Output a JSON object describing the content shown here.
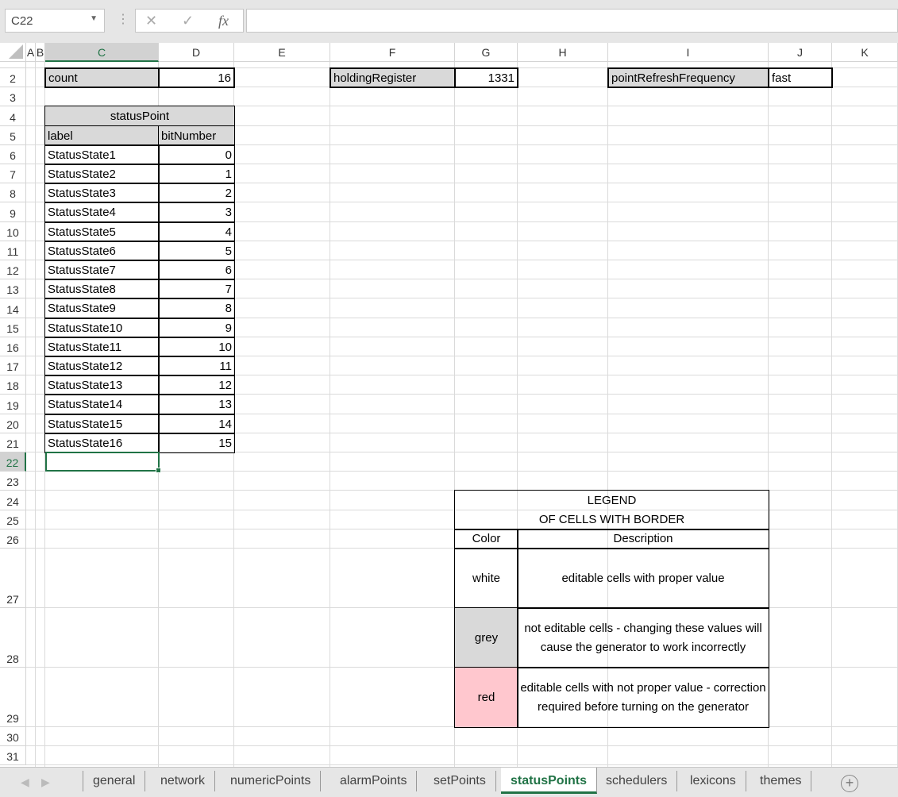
{
  "name_box": "C22",
  "formula_bar": {
    "cancel_icon": "✕",
    "enter_icon": "✓",
    "fx_icon": "fx",
    "value": ""
  },
  "columns": [
    "A",
    "B",
    "C",
    "D",
    "E",
    "F",
    "G",
    "H",
    "I",
    "J",
    "K"
  ],
  "rows": [
    "1",
    "2",
    "3",
    "4",
    "5",
    "6",
    "7",
    "8",
    "9",
    "10",
    "11",
    "12",
    "13",
    "14",
    "15",
    "16",
    "17",
    "18",
    "19",
    "20",
    "21",
    "22",
    "23",
    "24",
    "25",
    "26",
    "27",
    "28",
    "29",
    "30",
    "31"
  ],
  "selected": {
    "cell": "C22",
    "column": "C",
    "row": "22"
  },
  "cells": [
    {
      "ref": "C2",
      "value": "count",
      "style": "grey bb"
    },
    {
      "ref": "D2",
      "value": "16",
      "style": "r bb"
    },
    {
      "ref": "F2",
      "value": "holdingRegister",
      "style": "grey bb"
    },
    {
      "ref": "G2",
      "value": "1331",
      "style": "r bb"
    },
    {
      "ref": "I2",
      "value": "pointRefreshFrequency",
      "style": "grey bb"
    },
    {
      "ref": "J2",
      "value": "fast",
      "style": "bb"
    },
    {
      "ref": "C4:D4",
      "value": "statusPoint",
      "style": "grey b c"
    },
    {
      "ref": "C5",
      "value": "label",
      "style": "grey b"
    },
    {
      "ref": "D5",
      "value": "bitNumber",
      "style": "grey b"
    },
    {
      "ref": "C6",
      "value": "StatusState1",
      "style": "b"
    },
    {
      "ref": "D6",
      "value": "0",
      "style": "b r"
    },
    {
      "ref": "C7",
      "value": "StatusState2",
      "style": "b"
    },
    {
      "ref": "D7",
      "value": "1",
      "style": "b r"
    },
    {
      "ref": "C8",
      "value": "StatusState3",
      "style": "b"
    },
    {
      "ref": "D8",
      "value": "2",
      "style": "b r"
    },
    {
      "ref": "C9",
      "value": "StatusState4",
      "style": "b"
    },
    {
      "ref": "D9",
      "value": "3",
      "style": "b r"
    },
    {
      "ref": "C10",
      "value": "StatusState5",
      "style": "b"
    },
    {
      "ref": "D10",
      "value": "4",
      "style": "b r"
    },
    {
      "ref": "C11",
      "value": "StatusState6",
      "style": "b"
    },
    {
      "ref": "D11",
      "value": "5",
      "style": "b r"
    },
    {
      "ref": "C12",
      "value": "StatusState7",
      "style": "b"
    },
    {
      "ref": "D12",
      "value": "6",
      "style": "b r"
    },
    {
      "ref": "C13",
      "value": "StatusState8",
      "style": "b"
    },
    {
      "ref": "D13",
      "value": "7",
      "style": "b r"
    },
    {
      "ref": "C14",
      "value": "StatusState9",
      "style": "b"
    },
    {
      "ref": "D14",
      "value": "8",
      "style": "b r"
    },
    {
      "ref": "C15",
      "value": "StatusState10",
      "style": "b"
    },
    {
      "ref": "D15",
      "value": "9",
      "style": "b r"
    },
    {
      "ref": "C16",
      "value": "StatusState11",
      "style": "b"
    },
    {
      "ref": "D16",
      "value": "10",
      "style": "b r"
    },
    {
      "ref": "C17",
      "value": "StatusState12",
      "style": "b"
    },
    {
      "ref": "D17",
      "value": "11",
      "style": "b r"
    },
    {
      "ref": "C18",
      "value": "StatusState13",
      "style": "b"
    },
    {
      "ref": "D18",
      "value": "12",
      "style": "b r"
    },
    {
      "ref": "C19",
      "value": "StatusState14",
      "style": "b"
    },
    {
      "ref": "D19",
      "value": "13",
      "style": "b r"
    },
    {
      "ref": "C20",
      "value": "StatusState15",
      "style": "b"
    },
    {
      "ref": "D20",
      "value": "14",
      "style": "b r"
    },
    {
      "ref": "C21",
      "value": "StatusState16",
      "style": "b"
    },
    {
      "ref": "D21",
      "value": "15",
      "style": "b r"
    },
    {
      "ref": "G24:I25",
      "value": "LEGEND\nOF CELLS WITH BORDER",
      "style": "b c"
    },
    {
      "ref": "G26",
      "value": "Color",
      "style": "b c"
    },
    {
      "ref": "H26:I26",
      "value": "Description",
      "style": "b c"
    },
    {
      "ref": "G27",
      "value": "white",
      "style": "b c"
    },
    {
      "ref": "H27:I27",
      "value": "editable cells with proper value",
      "style": "b c"
    },
    {
      "ref": "G28",
      "value": "grey",
      "style": "b c grey"
    },
    {
      "ref": "H28:I28",
      "value": "not editable cells - changing these values will cause the generator to work incorrectly",
      "style": "b c"
    },
    {
      "ref": "G29",
      "value": "red",
      "style": "b c red"
    },
    {
      "ref": "H29:I29",
      "value": "editable cells with not proper value - correction required before turning on the generator",
      "style": "b c"
    }
  ],
  "sheet_tabs": [
    "general",
    "network",
    "numericPoints",
    "alarmPoints",
    "setPoints",
    "statusPoints",
    "schedulers",
    "lexicons",
    "themes"
  ],
  "active_tab": "statusPoints",
  "colors": {
    "accent": "#217346",
    "grey_cell": "#d9d9d9",
    "red_cell": "#ffc7ce"
  }
}
